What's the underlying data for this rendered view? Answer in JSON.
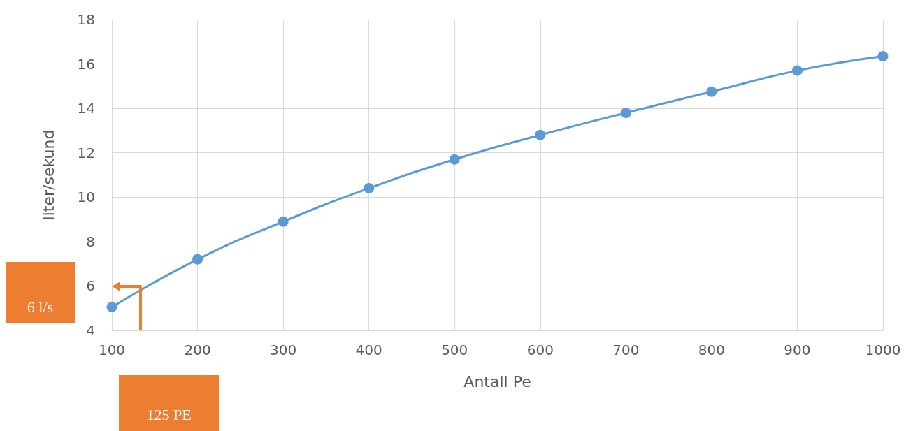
{
  "chart_data": {
    "type": "line",
    "xlabel": "Antall Pe",
    "ylabel": "liter/sekund",
    "x": [
      100,
      200,
      300,
      400,
      500,
      600,
      700,
      800,
      900,
      1000
    ],
    "series": [
      {
        "color": "#5b9bd5",
        "values": [
          5.05,
          7.2,
          8.9,
          10.4,
          11.7,
          12.8,
          13.8,
          14.75,
          15.7,
          16.35
        ]
      }
    ],
    "xlim": [
      100,
      1000
    ],
    "xticks": [
      100,
      200,
      300,
      400,
      500,
      600,
      700,
      800,
      900,
      1000
    ],
    "ylim": [
      4,
      18
    ],
    "yticks": [
      4,
      6,
      8,
      10,
      12,
      14,
      16,
      18
    ],
    "grid": true,
    "marker": "circle",
    "line_style": "solid",
    "annotations": [
      "6 l/s",
      "125 PE"
    ]
  }
}
